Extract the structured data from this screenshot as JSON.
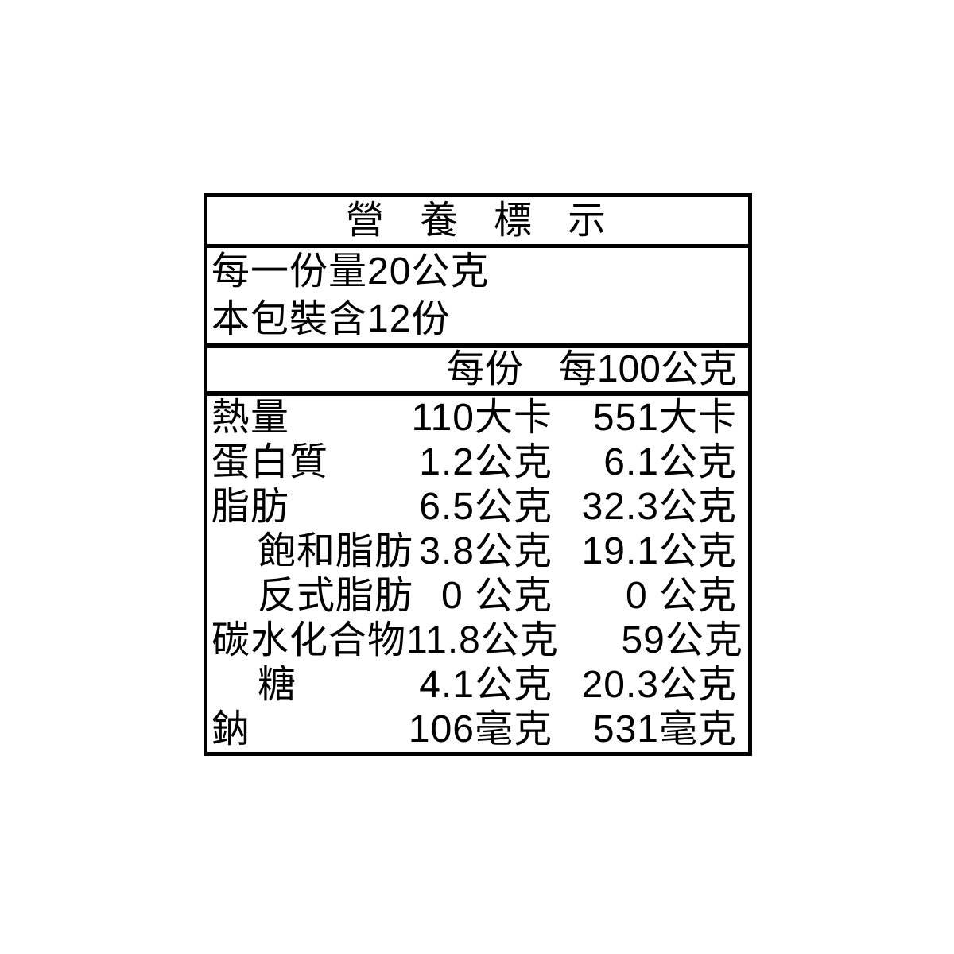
{
  "label": {
    "title": "營養標示",
    "serving_lines": [
      "每一份量20公克",
      "本包裝含12份"
    ],
    "columns": [
      "每份",
      "每100公克"
    ],
    "rows": [
      {
        "name": "熱量",
        "indent": false,
        "per_serving": "110大卡",
        "per_100g": "551大卡"
      },
      {
        "name": "蛋白質",
        "indent": false,
        "per_serving": "1.2公克",
        "per_100g": "6.1公克"
      },
      {
        "name": "脂肪",
        "indent": false,
        "per_serving": "6.5公克",
        "per_100g": "32.3公克"
      },
      {
        "name": "飽和脂肪",
        "indent": true,
        "per_serving": "3.8公克",
        "per_100g": "19.1公克"
      },
      {
        "name": "反式脂肪",
        "indent": true,
        "per_serving": "0 公克",
        "per_100g": "0 公克"
      },
      {
        "name": "碳水化合物",
        "indent": false,
        "per_serving": "11.8公克",
        "per_100g": "59公克"
      },
      {
        "name": "糖",
        "indent": true,
        "per_serving": "4.1公克",
        "per_100g": "20.3公克"
      },
      {
        "name": "鈉",
        "indent": false,
        "per_serving": "106毫克",
        "per_100g": "531毫克"
      }
    ],
    "colors": {
      "text": "#000000",
      "border": "#000000",
      "background": "#ffffff"
    }
  }
}
